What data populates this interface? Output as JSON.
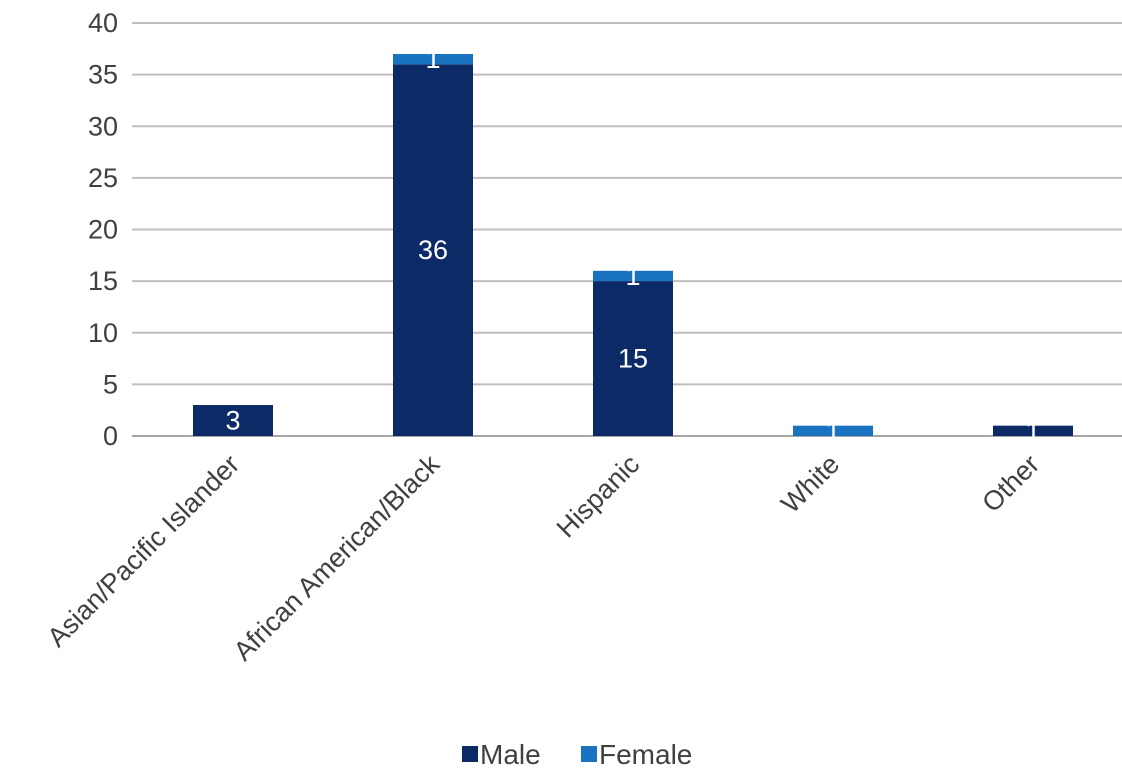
{
  "chart_data": {
    "type": "bar",
    "stacked": true,
    "title": "",
    "xlabel": "",
    "ylabel": "",
    "ylim": [
      0,
      40
    ],
    "y_ticks": [
      "0",
      "5",
      "10",
      "15",
      "20",
      "25",
      "30",
      "35",
      "40"
    ],
    "grid": true,
    "legend_position": "bottom",
    "categories": [
      "Asian/Pacific Islander",
      "African American/Black",
      "Hispanic",
      "White",
      "Other"
    ],
    "series": [
      {
        "name": "Male",
        "color": "#0c2a66",
        "values": [
          3,
          36,
          15,
          0,
          1
        ],
        "labels": [
          "3",
          "36",
          "15",
          "",
          "1"
        ]
      },
      {
        "name": "Female",
        "color": "#1a73c0",
        "values": [
          0,
          1,
          1,
          1,
          0
        ],
        "labels": [
          "",
          "1",
          "1",
          "1",
          ""
        ]
      }
    ]
  }
}
